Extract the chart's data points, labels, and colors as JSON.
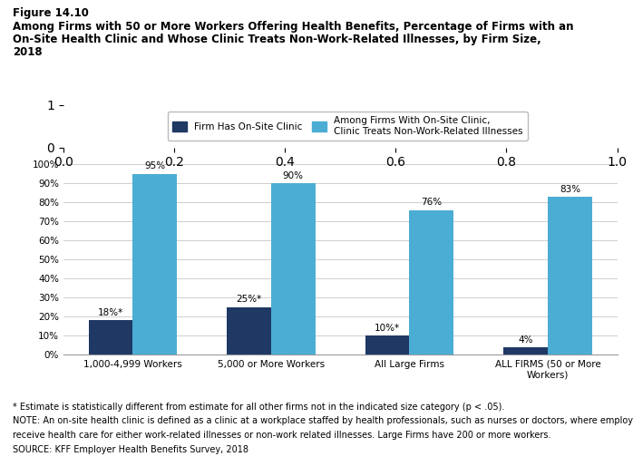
{
  "figure_label": "Figure 14.10",
  "title_line1": "Among Firms with 50 or More Workers Offering Health Benefits, Percentage of Firms with an",
  "title_line2": "On-Site Health Clinic and Whose Clinic Treats Non-Work-Related Illnesses, by Firm Size,",
  "title_line3": "2018",
  "categories": [
    "1,000-4,999 Workers",
    "5,000 or More Workers",
    "All Large Firms",
    "ALL FIRMS (50 or More\nWorkers)"
  ],
  "dark_blue_values": [
    18,
    25,
    10,
    4
  ],
  "light_blue_values": [
    95,
    90,
    76,
    83
  ],
  "dark_blue_labels": [
    "18%*",
    "25%*",
    "10%*",
    "4%"
  ],
  "light_blue_labels": [
    "95%",
    "90%",
    "76%",
    "83%"
  ],
  "dark_blue_color": "#1f3864",
  "light_blue_color": "#4badd4",
  "bar_width": 0.32,
  "ylim_max": 105,
  "yticks": [
    0,
    10,
    20,
    30,
    40,
    50,
    60,
    70,
    80,
    90,
    100
  ],
  "yticklabels": [
    "0%",
    "10%",
    "20%",
    "30%",
    "40%",
    "50%",
    "60%",
    "70%",
    "80%",
    "90%",
    "100%"
  ],
  "legend_dark_label": "Firm Has On-Site Clinic",
  "legend_light_label": "Among Firms With On-Site Clinic,\nClinic Treats Non-Work-Related Illnesses",
  "footnote1": "* Estimate is statistically different from estimate for all other firms not in the indicated size category (p < .05).",
  "footnote2": "NOTE: An on-site health clinic is defined as a clinic at a workplace staffed by health professionals, such as nurses or doctors, where employees can",
  "footnote3": "receive health care for either work-related illnesses or non-work related illnesses. Large Firms have 200 or more workers.",
  "footnote4": "SOURCE: KFF Employer Health Benefits Survey, 2018",
  "background_color": "#ffffff",
  "grid_color": "#bbbbbb"
}
